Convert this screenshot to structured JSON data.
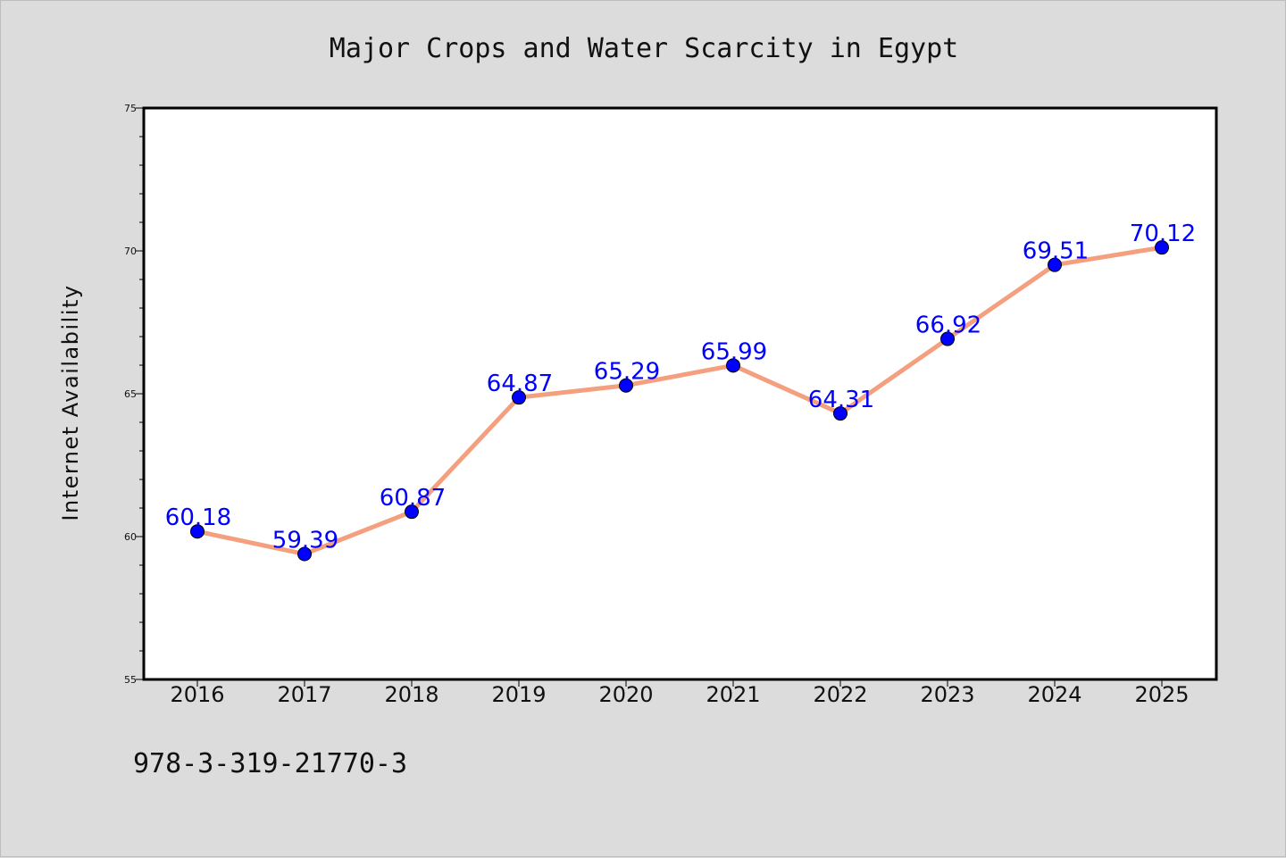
{
  "chart_data": {
    "type": "line",
    "title": "Major Crops and Water Scarcity in Egypt",
    "xlabel": "",
    "ylabel": "Internet Availability",
    "categories": [
      "2016",
      "2017",
      "2018",
      "2019",
      "2020",
      "2021",
      "2022",
      "2023",
      "2024",
      "2025"
    ],
    "series": [
      {
        "values": [
          60.18,
          59.39,
          60.87,
          64.87,
          65.29,
          65.99,
          64.31,
          66.92,
          69.51,
          70.12
        ],
        "line_color": "#f4a07f",
        "marker_color": "#0000ff"
      }
    ],
    "data_labels": [
      "60.18",
      "59.39",
      "60.87",
      "64.87",
      "65.29",
      "65.99",
      "64.31",
      "66.92",
      "69.51",
      "70.12"
    ],
    "ylim": [
      55,
      75
    ],
    "yticks": [
      "55",
      "60",
      "65",
      "70",
      "75"
    ],
    "grid": false,
    "legend": "none"
  },
  "annotation": "978-3-319-21770-3",
  "colors": {
    "page_background": "#dcdcdc",
    "plot_background": "#ffffff",
    "line": "#f4a07f",
    "marker": "#0000ff",
    "data_label": "#0000ff"
  }
}
